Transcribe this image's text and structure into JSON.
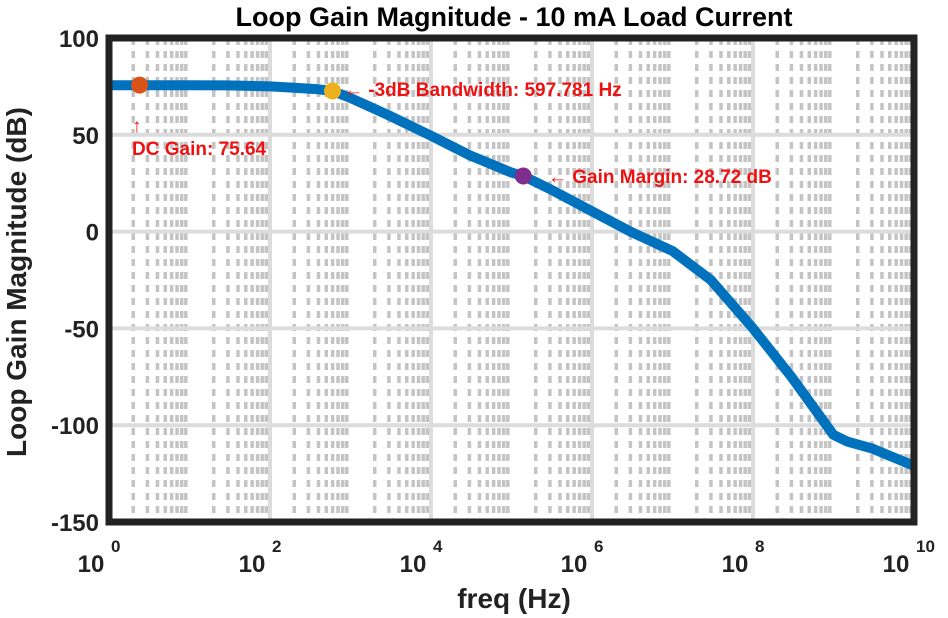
{
  "chart_data": {
    "type": "line",
    "title": "Loop Gain Magnitude - 10 mA Load Current",
    "xlabel": "freq (Hz)",
    "ylabel": "Loop Gain Magnitude (dB)",
    "x_scale": "log",
    "xlim": [
      1,
      10000000000
    ],
    "ylim": [
      -150,
      100
    ],
    "grid": true,
    "x_ticks": [
      {
        "base": "10",
        "exp": "0",
        "value": 1
      },
      {
        "base": "10",
        "exp": "2",
        "value": 100
      },
      {
        "base": "10",
        "exp": "4",
        "value": 10000
      },
      {
        "base": "10",
        "exp": "6",
        "value": 1000000
      },
      {
        "base": "10",
        "exp": "8",
        "value": 100000000
      },
      {
        "base": "10",
        "exp": "10",
        "value": 10000000000
      }
    ],
    "y_ticks": [
      "100",
      "50",
      "0",
      "-50",
      "-100",
      "-150"
    ],
    "series": [
      {
        "color": "#0072bd",
        "x": [
          1,
          3,
          10,
          30,
          100,
          200,
          400,
          600,
          1000,
          3000,
          10000,
          30000,
          100000,
          140000,
          300000,
          1000000,
          3000000,
          10000000,
          30000000,
          100000000,
          300000000,
          1000000000,
          1500000000,
          3000000000,
          10000000000
        ],
        "y": [
          75.6,
          75.6,
          75.6,
          75.5,
          75.0,
          74.3,
          73.5,
          72.6,
          69.0,
          60.0,
          49.5,
          39.5,
          30.5,
          28.7,
          22.0,
          10.5,
          0,
          -10,
          -25,
          -50,
          -75,
          -105,
          -108.5,
          -112,
          -121
        ]
      }
    ],
    "markers": [
      {
        "name": "DC Gain",
        "x": 2.4,
        "y": 75.64,
        "color": "#d95319"
      },
      {
        "name": "-3dB Bandwidth",
        "x": 597.781,
        "y": 72.64,
        "color": "#edb120"
      },
      {
        "name": "Gain Margin",
        "x": 140000,
        "y": 28.72,
        "color": "#7e2f8e"
      }
    ],
    "annotations": {
      "dc_arrow": "↑",
      "dc_gain": "DC Gain: 75.64",
      "bandwidth": "← -3dB Bandwidth: 597.781 Hz",
      "gain_margin": "← Gain Margin: 28.72 dB"
    }
  }
}
